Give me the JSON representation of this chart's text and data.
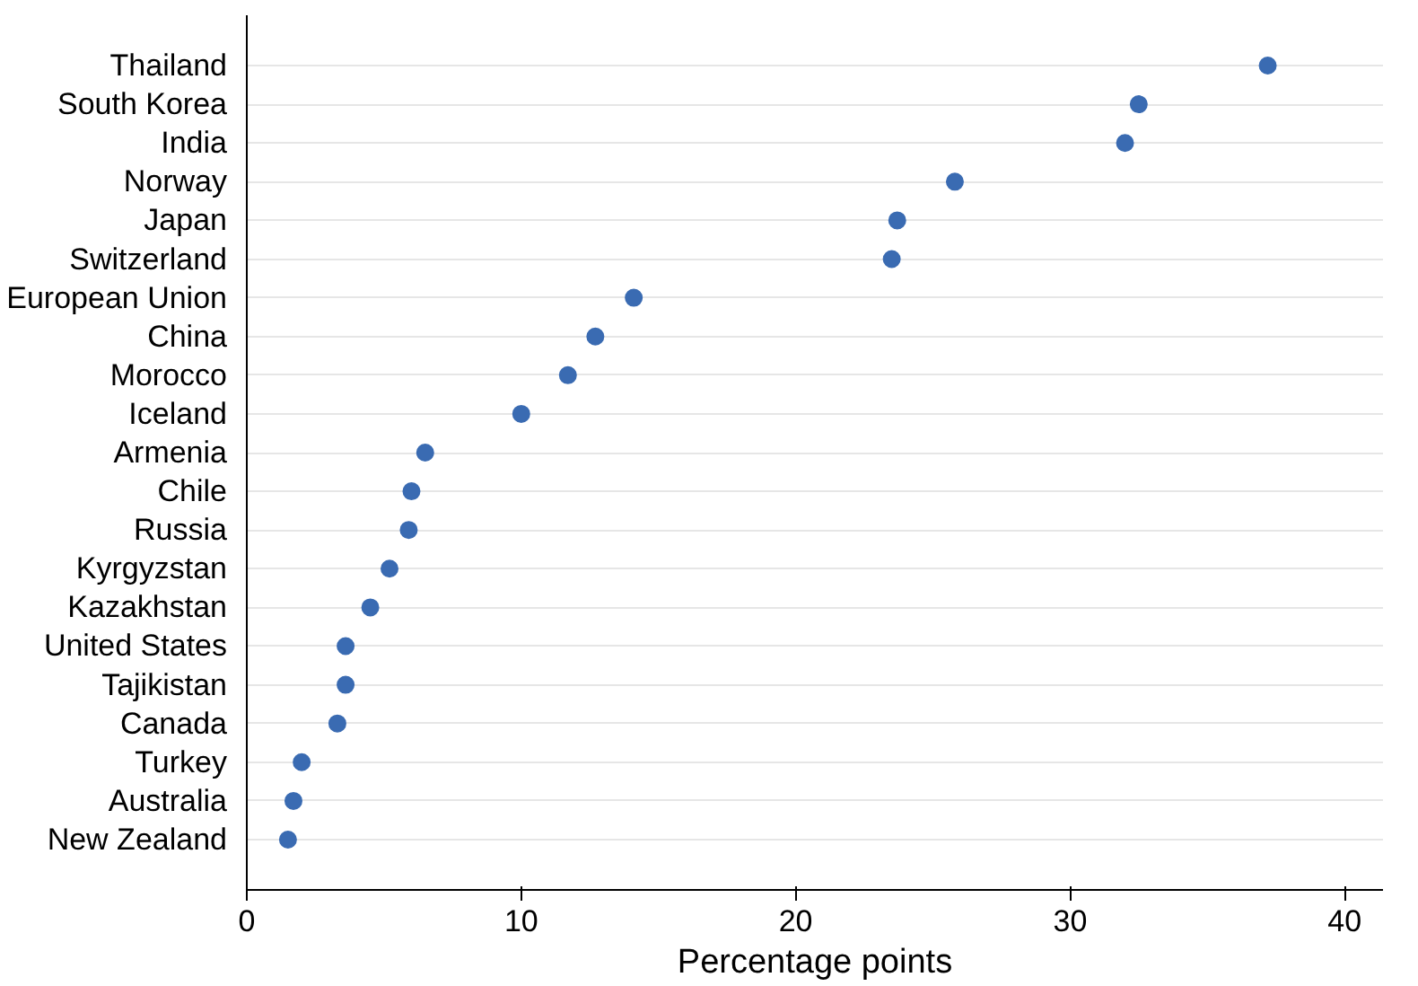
{
  "chart_data": {
    "type": "scatter",
    "orientation": "horizontal",
    "xlabel": "Percentage points",
    "categories": [
      "Thailand",
      "South Korea",
      "India",
      "Norway",
      "Japan",
      "Switzerland",
      "European Union",
      "China",
      "Morocco",
      "Iceland",
      "Armenia",
      "Chile",
      "Russia",
      "Kyrgyzstan",
      "Kazakhstan",
      "United States",
      "Tajikistan",
      "Canada",
      "Turkey",
      "Australia",
      "New Zealand"
    ],
    "values": [
      37.2,
      32.5,
      32.0,
      25.8,
      23.7,
      23.5,
      14.1,
      12.7,
      11.7,
      10.0,
      6.5,
      6.0,
      5.9,
      5.2,
      4.5,
      3.6,
      3.6,
      3.3,
      2.0,
      1.7,
      1.5
    ],
    "color": "#3a6bb2",
    "marker": "circle",
    "xlim": [
      0,
      41.4
    ],
    "xticks": [
      0,
      10,
      20,
      30,
      40
    ],
    "grid": "y"
  }
}
